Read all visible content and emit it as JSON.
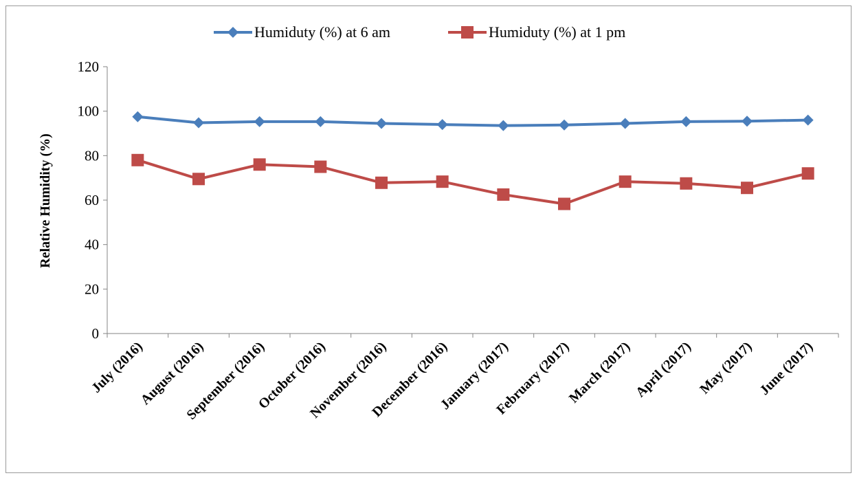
{
  "chart_data": {
    "type": "line",
    "title": "",
    "xlabel": "",
    "ylabel": "Relative Humidity (%)",
    "ylim": [
      0,
      120
    ],
    "yticks": [
      0,
      20,
      40,
      60,
      80,
      100,
      120
    ],
    "grid": false,
    "legend_position": "top",
    "categories": [
      "July (2016)",
      "August  (2016)",
      "September (2016)",
      "October (2016)",
      "November (2016)",
      "December (2016)",
      "January (2017)",
      "February (2017)",
      "March (2017)",
      "April (2017)",
      "May (2017)",
      "June (2017)"
    ],
    "series": [
      {
        "name": "Humiduty (%) at 6 am",
        "color": "#4a7ebb",
        "marker": "diamond",
        "values": [
          97.5,
          94.8,
          95.3,
          95.3,
          94.5,
          94.0,
          93.5,
          93.8,
          94.5,
          95.3,
          95.5,
          96.0
        ]
      },
      {
        "name": "Humiduty (%) at 1 pm",
        "color": "#be4b48",
        "marker": "square",
        "values": [
          78.0,
          69.5,
          76.0,
          75.0,
          67.8,
          68.3,
          62.5,
          58.3,
          68.3,
          67.5,
          65.5,
          72.0
        ]
      }
    ]
  }
}
